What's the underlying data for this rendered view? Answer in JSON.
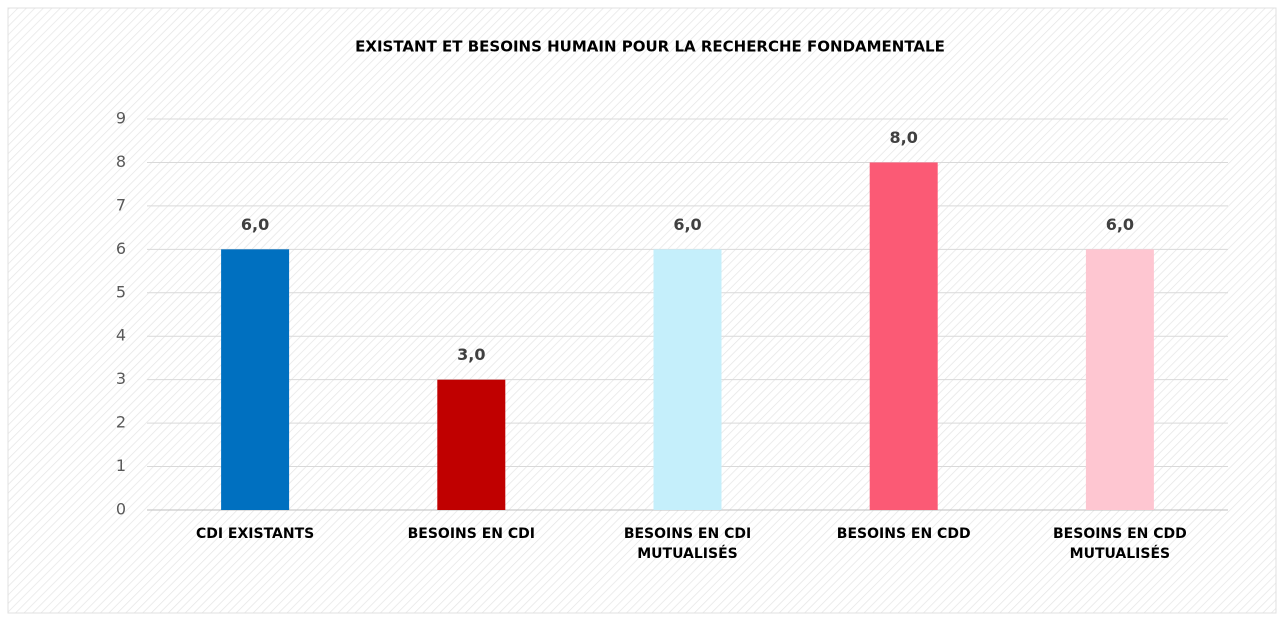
{
  "chart_data": {
    "type": "bar",
    "title": "EXISTANT ET BESOINS HUMAIN POUR LA RECHERCHE FONDAMENTALE",
    "categories": [
      "CDI EXISTANTS",
      "BESOINS EN CDI",
      "BESOINS EN CDI MUTUALISÉS",
      "BESOINS EN CDD",
      "BESOINS EN CDD MUTUALISÉS"
    ],
    "values": [
      6,
      3,
      6,
      8,
      6
    ],
    "value_labels": [
      "6,0",
      "3,0",
      "6,0",
      "8,0",
      "6,0"
    ],
    "colors": [
      "#0070c0",
      "#c00000",
      "#c5effb",
      "#fb5a75",
      "#fec6d1"
    ],
    "ylim": [
      0,
      9
    ],
    "yticks": [
      0,
      1,
      2,
      3,
      4,
      5,
      6,
      7,
      8,
      9
    ],
    "grid": true
  }
}
